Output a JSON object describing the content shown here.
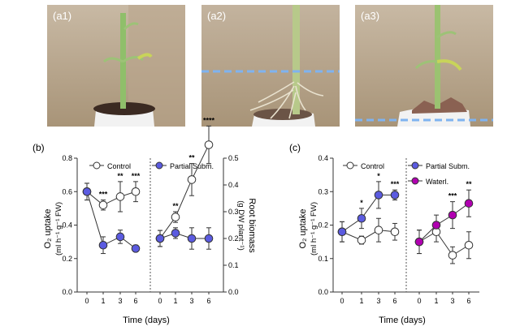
{
  "photos": [
    {
      "label": "(a1)",
      "dashed_line": false,
      "soil_color": "#3b2a22"
    },
    {
      "label": "(a2)",
      "dashed_line": true,
      "soil_color": "#6b5446"
    },
    {
      "label": "(a3)",
      "dashed_line": true,
      "soil_color": "#8a6152"
    }
  ],
  "dash_color": "#7fb3f0",
  "colors": {
    "control": "#ffffff",
    "partial": "#5b5be0",
    "waterlogged": "#b000b0"
  },
  "panels": {
    "b": {
      "letter": "(b)",
      "ylabel_left": "O₂ uptake",
      "ylabel_left_units": "(ml h⁻¹ g⁻¹ FW)",
      "ylabel_right": "Root biomass",
      "ylabel_right_units": "(g DW plant⁻¹)",
      "xlabel": "Time (days)",
      "legend_left": "Control",
      "legend_right": "Partial Subm."
    },
    "c": {
      "letter": "(c)",
      "ylabel_left": "O₂ uptake",
      "ylabel_left_units": "(ml h⁻¹ g⁻¹ FW)",
      "xlabel": "Time (days)",
      "legend_left": "Control",
      "legend_right_1": "Partial Subm.",
      "legend_right_2": "Waterl."
    }
  },
  "chart_data": [
    {
      "type": "line",
      "panel": "(b) left",
      "ylabel": "O₂ uptake (ml h⁻¹ g⁻¹ FW)",
      "xlabel": "Time (days)",
      "ylim": [
        0,
        0.8
      ],
      "yticks": [
        "0.0",
        "0.2",
        "0.4",
        "0.6",
        "0.8"
      ],
      "categories": [
        "0",
        "1",
        "3",
        "6"
      ],
      "series": [
        {
          "name": "Control",
          "values": [
            0.6,
            0.52,
            0.57,
            0.6
          ],
          "errors": [
            0.05,
            0.03,
            0.09,
            0.06
          ],
          "fill": "#ffffff"
        },
        {
          "name": "Partial Subm.",
          "values": [
            0.6,
            0.28,
            0.33,
            0.26
          ],
          "errors": [
            0.05,
            0.05,
            0.04,
            0.02
          ],
          "fill": "#5b5be0"
        }
      ],
      "significance": [
        {
          "x": "1",
          "text": "***"
        },
        {
          "x": "3",
          "text": "**"
        },
        {
          "x": "6",
          "text": "***"
        }
      ]
    },
    {
      "type": "line",
      "panel": "(b) right",
      "ylabel": "Root biomass (g DW plant⁻¹)",
      "xlabel": "Time (days)",
      "ylim": [
        0,
        0.5
      ],
      "yticks": [
        "0.0",
        "0.1",
        "0.2",
        "0.3",
        "0.4",
        "0.5"
      ],
      "categories": [
        "0",
        "1",
        "3",
        "6"
      ],
      "series": [
        {
          "name": "Control",
          "values": [
            0.2,
            0.28,
            0.42,
            0.55
          ],
          "errors": [
            0.03,
            0.02,
            0.06,
            0.07
          ],
          "fill": "#ffffff"
        },
        {
          "name": "Partial Subm.",
          "values": [
            0.2,
            0.22,
            0.2,
            0.2
          ],
          "errors": [
            0.03,
            0.02,
            0.04,
            0.04
          ],
          "fill": "#5b5be0"
        }
      ],
      "significance": [
        {
          "x": "1",
          "text": "**"
        },
        {
          "x": "3",
          "text": "**"
        },
        {
          "x": "6",
          "text": "****"
        }
      ]
    },
    {
      "type": "line",
      "panel": "(c) left",
      "ylabel": "O₂ uptake (ml h⁻¹ g⁻¹ FW)",
      "xlabel": "Time (days)",
      "ylim": [
        0,
        0.4
      ],
      "yticks": [
        "0.0",
        "0.1",
        "0.2",
        "0.3",
        "0.4"
      ],
      "categories": [
        "0",
        "1",
        "3",
        "6"
      ],
      "series": [
        {
          "name": "Control",
          "values": [
            0.18,
            0.155,
            0.185,
            0.18
          ],
          "errors": [
            0.03,
            0.012,
            0.035,
            0.025
          ],
          "fill": "#ffffff"
        },
        {
          "name": "Partial Subm.",
          "values": [
            0.18,
            0.22,
            0.29,
            0.29
          ],
          "errors": [
            0.03,
            0.03,
            0.04,
            0.015
          ],
          "fill": "#5b5be0"
        }
      ],
      "significance": [
        {
          "x": "1",
          "text": "*"
        },
        {
          "x": "3",
          "text": "*"
        },
        {
          "x": "6",
          "text": "***"
        }
      ]
    },
    {
      "type": "line",
      "panel": "(c) right",
      "ylabel": "O₂ uptake (ml h⁻¹ g⁻¹ FW)",
      "xlabel": "Time (days)",
      "ylim": [
        0,
        0.4
      ],
      "categories": [
        "0",
        "1",
        "3",
        "6"
      ],
      "series": [
        {
          "name": "Control",
          "values": [
            0.15,
            0.18,
            0.11,
            0.14
          ],
          "errors": [
            0.035,
            0.03,
            0.025,
            0.04
          ],
          "fill": "#ffffff"
        },
        {
          "name": "Waterl.",
          "values": [
            0.15,
            0.2,
            0.23,
            0.265
          ],
          "errors": [
            0.035,
            0.03,
            0.04,
            0.04
          ],
          "fill": "#b000b0"
        }
      ],
      "significance": [
        {
          "x": "3",
          "text": "***"
        },
        {
          "x": "6",
          "text": "**"
        }
      ]
    }
  ]
}
